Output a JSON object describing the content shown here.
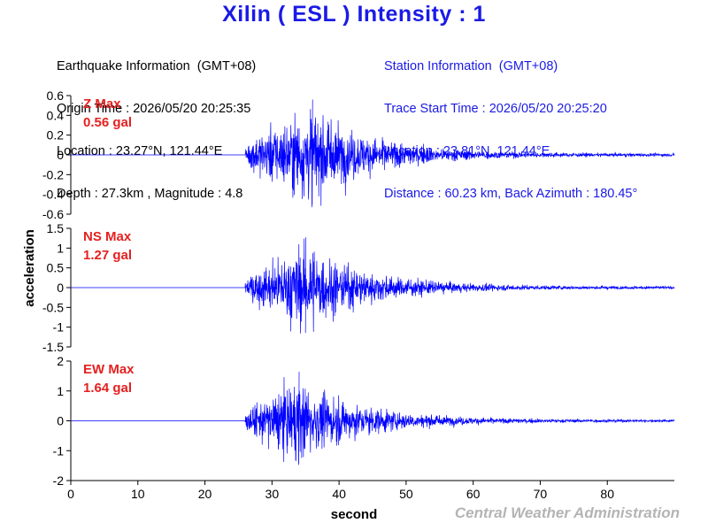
{
  "header": {
    "title": "Xilin  ( ESL )  Intensity : 1"
  },
  "earthquake_info": {
    "heading": "Earthquake Information  (GMT+08)",
    "origin_time": "Origin Time : 2026/05/20 20:25:35",
    "location": "Location : 23.27°N, 121.44°E",
    "depth_magnitude": "Depth : 27.3km , Magnitude : 4.8"
  },
  "station_info": {
    "heading": "Station Information  (GMT+08)",
    "trace_start": "Trace Start Time : 2026/05/20 20:25:20",
    "location": "Location : 23.81°N, 121.44°E",
    "distance": "Distance : 60.23 km, Back Azimuth : 180.45°"
  },
  "footer": {
    "credit": "Central Weather Administration"
  },
  "colors": {
    "title": "#1a1ae6",
    "trace": "#0000ff",
    "label": "#e62020",
    "credit": "#b4b4b4"
  },
  "chart_data": {
    "type": "line",
    "xlabel": "second",
    "ylabel": "acceleration",
    "xlim": [
      0,
      90
    ],
    "xticks": [
      "0",
      "10",
      "20",
      "30",
      "40",
      "50",
      "60",
      "70",
      "80"
    ],
    "grid": false,
    "series": [
      {
        "name": "Z Max",
        "max_label": "0.56 gal",
        "ylim": [
          -0.6,
          0.6
        ],
        "yticks": [
          "0.6",
          "0.4",
          "0.2",
          "0",
          "-0.2",
          "-0.4",
          "-0.6"
        ],
        "peak": 0.56,
        "onset_s": 26,
        "peak_time_s": 36
      },
      {
        "name": "NS Max",
        "max_label": "1.27 gal",
        "ylim": [
          -1.5,
          1.5
        ],
        "yticks": [
          "1.5",
          "1",
          "0.5",
          "0",
          "-0.5",
          "-1",
          "-1.5"
        ],
        "peak": 1.27,
        "onset_s": 26,
        "peak_time_s": 35
      },
      {
        "name": "EW Max",
        "max_label": "1.64 gal",
        "ylim": [
          -2,
          2
        ],
        "yticks": [
          "2",
          "1",
          "0",
          "-1",
          "-2"
        ],
        "peak": 1.64,
        "onset_s": 26,
        "peak_time_s": 34
      }
    ]
  }
}
